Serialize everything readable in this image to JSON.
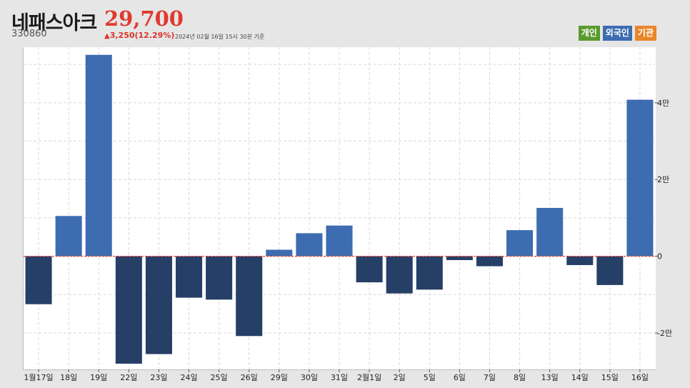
{
  "header": {
    "name": "네패스아크",
    "code": "330860",
    "price": "29,700",
    "change": "3,250(12.29%)",
    "change_arrow": "▲",
    "timestamp": "2024년 02월 16일 15시 30분 기준"
  },
  "legend": [
    {
      "label": "개인",
      "color": "#5a9a2e"
    },
    {
      "label": "외국인",
      "color": "#3d6cb0"
    },
    {
      "label": "기관",
      "color": "#e8862a"
    }
  ],
  "chart_data": {
    "type": "bar",
    "categories": [
      "1월17일",
      "18일",
      "19일",
      "22일",
      "23일",
      "24일",
      "25일",
      "26일",
      "29일",
      "30일",
      "31일",
      "2월1일",
      "2일",
      "5일",
      "6일",
      "7일",
      "8일",
      "13일",
      "14일",
      "15일",
      "16일"
    ],
    "series": [
      {
        "name": "외국인",
        "values": [
          -12500,
          10500,
          52500,
          -28000,
          -25500,
          -10800,
          -11300,
          -20800,
          1700,
          6000,
          8000,
          -6800,
          -9700,
          -8700,
          -1000,
          -2600,
          6800,
          12600,
          -2300,
          -7500,
          40800
        ]
      }
    ],
    "ylim": [
      -29500,
      54500
    ],
    "yticks": [
      -20000,
      0,
      20000,
      40000
    ],
    "ytick_labels": [
      "-2만",
      "0",
      "2만",
      "4만"
    ],
    "positive_color": "#3d6cb0",
    "negative_color": "#253f66",
    "zero_line_color": "#e03a2f",
    "grid": true
  }
}
